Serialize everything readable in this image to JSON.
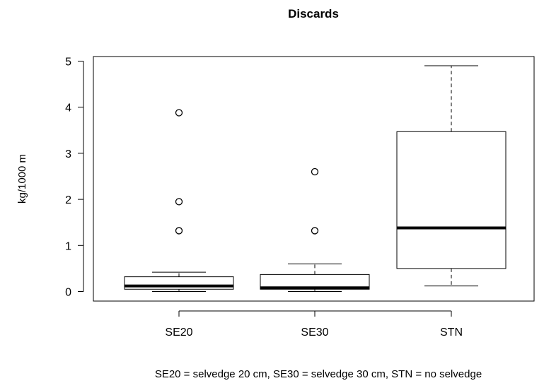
{
  "chart_data": {
    "type": "box",
    "title": "Discards",
    "ylabel": "kg/1000 m",
    "xlabel": "",
    "caption": "SE20 = selvedge 20 cm, SE30 = selvedge 30 cm, STN = no selvedge",
    "ylim": [
      -0.2,
      5.05
    ],
    "yticks": [
      0,
      1,
      2,
      3,
      4,
      5
    ],
    "categories": [
      "SE20",
      "SE30",
      "STN"
    ],
    "boxes": [
      {
        "category": "SE20",
        "whisker_low": 0.0,
        "q1": 0.05,
        "median": 0.12,
        "q3": 0.32,
        "whisker_high": 0.42,
        "outliers": [
          1.32,
          1.95,
          3.88
        ]
      },
      {
        "category": "SE30",
        "whisker_low": 0.0,
        "q1": 0.05,
        "median": 0.08,
        "q3": 0.37,
        "whisker_high": 0.6,
        "outliers": [
          1.32,
          2.6
        ]
      },
      {
        "category": "STN",
        "whisker_low": 0.12,
        "q1": 0.5,
        "median": 1.38,
        "q3": 3.47,
        "whisker_high": 4.9,
        "outliers": []
      }
    ]
  }
}
